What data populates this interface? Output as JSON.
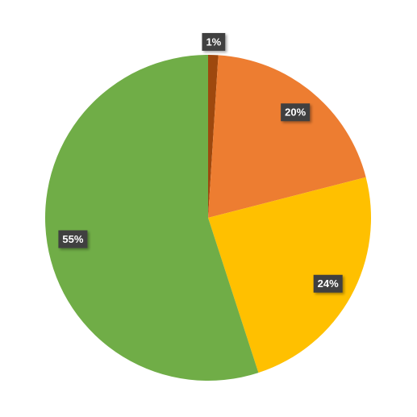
{
  "chart_data": {
    "type": "pie",
    "values": [
      1,
      20,
      24,
      55
    ],
    "value_labels": [
      "1%",
      "20%",
      "24%",
      "55%"
    ],
    "colors": [
      "#9e480e",
      "#ed7d31",
      "#ffc000",
      "#70ad47"
    ]
  }
}
